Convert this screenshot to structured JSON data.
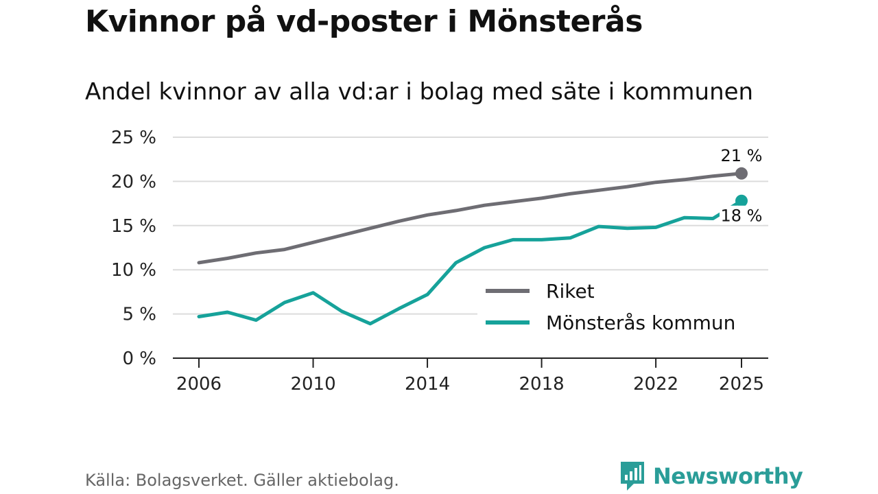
{
  "header": {
    "title": "Kvinnor på vd-poster i Mönsterås",
    "subtitle": "Andel kvinnor av alla vd:ar i bolag med säte i kommunen"
  },
  "footer": {
    "source": "Källa: Bolagsverket. Gäller aktiebolag.",
    "brand": "Newsworthy",
    "logo_icon": "newsworthy-logo-icon"
  },
  "colors": {
    "riket": "#6e6d73",
    "kommun": "#16a29a",
    "grid": "#dcdcdc",
    "axis": "#222222",
    "brand": "#2a9d98"
  },
  "chart_data": {
    "type": "line",
    "x": [
      2006,
      2007,
      2008,
      2009,
      2010,
      2011,
      2012,
      2013,
      2014,
      2015,
      2016,
      2017,
      2018,
      2019,
      2020,
      2021,
      2022,
      2023,
      2024,
      2025
    ],
    "series": [
      {
        "name": "Riket",
        "color": "#6e6d73",
        "values": [
          10.8,
          11.3,
          11.9,
          12.3,
          13.1,
          13.9,
          14.7,
          15.5,
          16.2,
          16.7,
          17.3,
          17.7,
          18.1,
          18.6,
          19.0,
          19.4,
          19.9,
          20.2,
          20.6,
          20.9
        ],
        "end_label": "21 %"
      },
      {
        "name": "Mönsterås kommun",
        "color": "#16a29a",
        "values": [
          4.7,
          5.2,
          4.3,
          6.3,
          7.4,
          5.3,
          3.9,
          5.6,
          7.2,
          10.8,
          12.5,
          13.4,
          13.4,
          13.6,
          14.9,
          14.7,
          14.8,
          15.9,
          15.8,
          17.8
        ],
        "end_label": "18 %"
      }
    ],
    "xticks": [
      2006,
      2010,
      2014,
      2018,
      2022,
      2025
    ],
    "xtick_labels": [
      "2006",
      "2010",
      "2014",
      "2018",
      "2022",
      "2025"
    ],
    "yticks": [
      0,
      5,
      10,
      15,
      20,
      25
    ],
    "ytick_labels": [
      "0 %",
      "5 %",
      "10 %",
      "15 %",
      "20 %",
      "25 %"
    ],
    "ylim": [
      0,
      25
    ],
    "xlim": [
      2006,
      2025
    ],
    "xlabel": "",
    "ylabel": "",
    "title": "Kvinnor på vd-poster i Mönsterås",
    "legend": [
      "Riket",
      "Mönsterås kommun"
    ],
    "legend_position": "bottom-right",
    "grid": true
  }
}
